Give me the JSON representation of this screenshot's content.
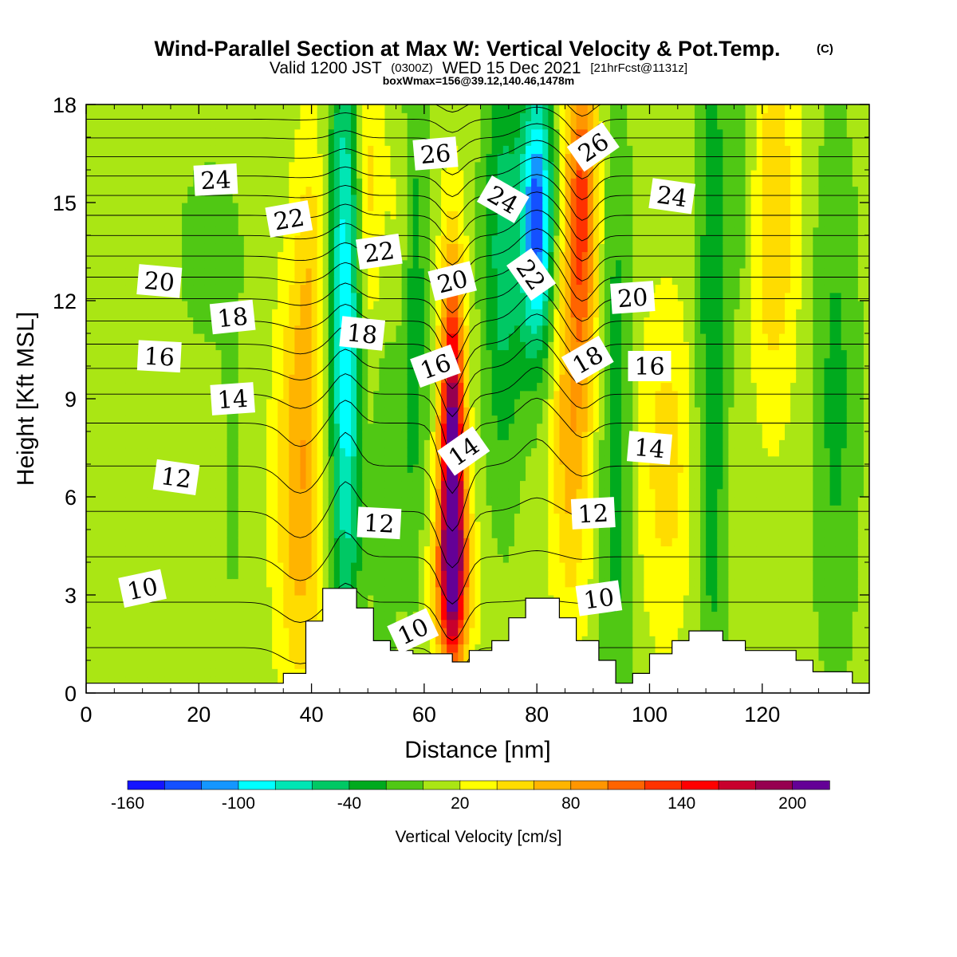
{
  "chart_data": {
    "type": "heatmap",
    "title": "Wind-Parallel Section at Max W: Vertical Velocity & Pot.Temp.",
    "title_suffix": "(C)",
    "subtitle": {
      "valid": "Valid 1200 JST",
      "zulu": "(0300Z)",
      "date": "WED 15 Dec 2021",
      "forecast": "[21hrFcst@1131z]"
    },
    "subtitle2": "boxWmax=156@39.12,140.46,1478m",
    "xlabel": "Distance [nm]",
    "ylabel": "Height [Kft MSL]",
    "xlim": [
      0,
      139
    ],
    "ylim": [
      0,
      18
    ],
    "x_ticks": [
      0,
      20,
      40,
      60,
      80,
      100,
      120
    ],
    "y_ticks": [
      0,
      3,
      6,
      9,
      12,
      15,
      18
    ],
    "colorbar": {
      "label": "Vertical Velocity [cm/s]",
      "min": -160,
      "max": 220,
      "step": 20,
      "tick_labels": [
        -160,
        -100,
        -40,
        20,
        80,
        140,
        200
      ],
      "colors": [
        "#1414ff",
        "#1450ff",
        "#1496ff",
        "#00ffff",
        "#00e6b4",
        "#00c864",
        "#00aa1e",
        "#50c814",
        "#aae614",
        "#ffff00",
        "#ffdc00",
        "#ffb400",
        "#ff9600",
        "#ff6400",
        "#ff3200",
        "#ff0000",
        "#c8002d",
        "#960050",
        "#640096"
      ]
    },
    "terrain_kft": [
      [
        0,
        0.3
      ],
      [
        35,
        0.3
      ],
      [
        35,
        0.6
      ],
      [
        39,
        0.6
      ],
      [
        39,
        2.2
      ],
      [
        42,
        2.2
      ],
      [
        42,
        3.2
      ],
      [
        48,
        3.2
      ],
      [
        48,
        2.6
      ],
      [
        51,
        2.6
      ],
      [
        51,
        1.6
      ],
      [
        54,
        1.6
      ],
      [
        54,
        1.3
      ],
      [
        58,
        1.3
      ],
      [
        58,
        1.2
      ],
      [
        65,
        1.2
      ],
      [
        65,
        0.95
      ],
      [
        68,
        0.95
      ],
      [
        68,
        1.3
      ],
      [
        72,
        1.3
      ],
      [
        72,
        1.6
      ],
      [
        75,
        1.6
      ],
      [
        75,
        2.3
      ],
      [
        78,
        2.3
      ],
      [
        78,
        2.9
      ],
      [
        84,
        2.9
      ],
      [
        84,
        2.3
      ],
      [
        87,
        2.3
      ],
      [
        87,
        1.6
      ],
      [
        91,
        1.6
      ],
      [
        91,
        1.0
      ],
      [
        94,
        1.0
      ],
      [
        94,
        0.3
      ],
      [
        97,
        0.3
      ],
      [
        97,
        0.6
      ],
      [
        100,
        0.6
      ],
      [
        100,
        1.2
      ],
      [
        104,
        1.2
      ],
      [
        104,
        1.6
      ],
      [
        107,
        1.6
      ],
      [
        107,
        1.9
      ],
      [
        113,
        1.9
      ],
      [
        113,
        1.6
      ],
      [
        117,
        1.6
      ],
      [
        117,
        1.3
      ],
      [
        126,
        1.3
      ],
      [
        126,
        1.0
      ],
      [
        129,
        1.0
      ],
      [
        129,
        0.65
      ],
      [
        136,
        0.65
      ],
      [
        136,
        0.3
      ],
      [
        139,
        0.3
      ]
    ],
    "velocity_features": [
      {
        "x": 65,
        "y": 7.0,
        "sx": 1.5,
        "sy": 4.0,
        "w": 220
      },
      {
        "x": 65,
        "y": 3.5,
        "sx": 2.5,
        "sy": 1.8,
        "w": 90
      },
      {
        "x": 38,
        "y": 6.5,
        "sx": 3.0,
        "sy": 4.5,
        "w": 70
      },
      {
        "x": 40,
        "y": 13.5,
        "sx": 2.0,
        "sy": 3.0,
        "w": 30
      },
      {
        "x": 88,
        "y": 15.0,
        "sx": 2.0,
        "sy": 3.5,
        "w": 110
      },
      {
        "x": 86,
        "y": 8.0,
        "sx": 2.5,
        "sy": 4.0,
        "w": 60
      },
      {
        "x": 103,
        "y": 7.0,
        "sx": 3.5,
        "sy": 3.5,
        "w": 40
      },
      {
        "x": 122,
        "y": 14.5,
        "sx": 3.0,
        "sy": 4.0,
        "w": 50
      },
      {
        "x": 50,
        "y": 15.5,
        "sx": 2.0,
        "sy": 3.5,
        "w": 40
      },
      {
        "x": 56,
        "y": 14.5,
        "sx": 1.5,
        "sy": 2.5,
        "w": 25
      },
      {
        "x": 46,
        "y": 11.0,
        "sx": 2.0,
        "sy": 7.0,
        "w": -110
      },
      {
        "x": 80,
        "y": 14.5,
        "sx": 2.0,
        "sy": 3.0,
        "w": -140
      },
      {
        "x": 74,
        "y": 13.5,
        "sx": 2.5,
        "sy": 5.0,
        "w": -60
      },
      {
        "x": 58,
        "y": 12.0,
        "sx": 1.8,
        "sy": 6.0,
        "w": -45
      },
      {
        "x": 53,
        "y": 6.0,
        "sx": 1.5,
        "sy": 4.0,
        "w": -30
      },
      {
        "x": 94,
        "y": 8.0,
        "sx": 2.0,
        "sy": 8.0,
        "w": -40
      },
      {
        "x": 111,
        "y": 10.0,
        "sx": 2.0,
        "sy": 9.0,
        "w": -45
      },
      {
        "x": 133,
        "y": 9.0,
        "sx": 3.0,
        "sy": 6.0,
        "w": -35
      },
      {
        "x": 116,
        "y": 16.0,
        "sx": 2.0,
        "sy": 3.0,
        "w": -30
      },
      {
        "x": 26,
        "y": 6.0,
        "sx": 1.5,
        "sy": 3.0,
        "w": -15
      },
      {
        "x": 22,
        "y": 13.5,
        "sx": 6.0,
        "sy": 3.0,
        "w": -15
      }
    ],
    "theta_levels_c": [
      4,
      5,
      6,
      7,
      8,
      9,
      10,
      11,
      12,
      13,
      14,
      15,
      16,
      17,
      18,
      19,
      20,
      21,
      22,
      23,
      24,
      25,
      26,
      27,
      28,
      29
    ],
    "contour_labels": [
      {
        "text": "10",
        "x": 10,
        "y": 3.2
      },
      {
        "text": "12",
        "x": 16,
        "y": 6.6
      },
      {
        "text": "14",
        "x": 26,
        "y": 9.0
      },
      {
        "text": "16",
        "x": 13,
        "y": 10.3
      },
      {
        "text": "18",
        "x": 26,
        "y": 11.5
      },
      {
        "text": "20",
        "x": 13,
        "y": 12.6
      },
      {
        "text": "24",
        "x": 23,
        "y": 15.7
      },
      {
        "text": "22",
        "x": 36,
        "y": 14.5
      },
      {
        "text": "22",
        "x": 52,
        "y": 13.5
      },
      {
        "text": "18",
        "x": 49,
        "y": 11.0
      },
      {
        "text": "26",
        "x": 62,
        "y": 16.5
      },
      {
        "text": "20",
        "x": 65,
        "y": 12.6
      },
      {
        "text": "16",
        "x": 62,
        "y": 10.0
      },
      {
        "text": "14",
        "x": 67,
        "y": 7.4
      },
      {
        "text": "12",
        "x": 52,
        "y": 5.2
      },
      {
        "text": "10",
        "x": 58,
        "y": 1.9
      },
      {
        "text": "24",
        "x": 74,
        "y": 15.1
      },
      {
        "text": "22",
        "x": 79,
        "y": 12.8
      },
      {
        "text": "26",
        "x": 90,
        "y": 16.7
      },
      {
        "text": "18",
        "x": 89,
        "y": 10.2
      },
      {
        "text": "24",
        "x": 104,
        "y": 15.2
      },
      {
        "text": "20",
        "x": 97,
        "y": 12.1
      },
      {
        "text": "16",
        "x": 100,
        "y": 10.0
      },
      {
        "text": "14",
        "x": 100,
        "y": 7.5
      },
      {
        "text": "12",
        "x": 90,
        "y": 5.5
      },
      {
        "text": "10",
        "x": 91,
        "y": 2.9
      }
    ]
  }
}
